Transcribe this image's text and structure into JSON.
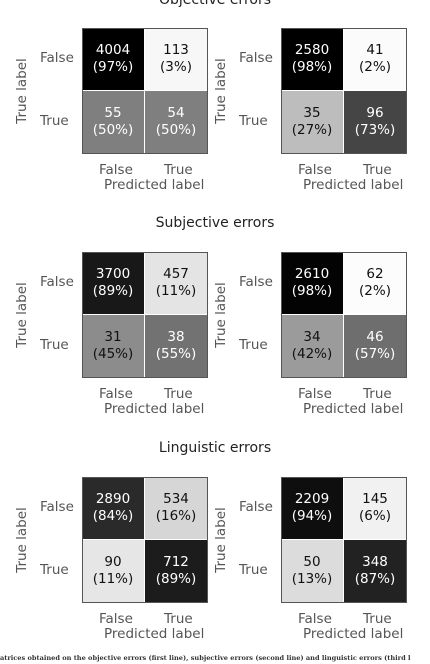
{
  "chart_data": [
    {
      "type": "heatmap",
      "section": "Objective errors",
      "title": "Objective errors",
      "xlabel": "Predicted label",
      "ylabel": "True label",
      "x_ticks": [
        "False",
        "True"
      ],
      "y_ticks": [
        "False",
        "True"
      ],
      "counts": [
        [
          4004,
          113
        ],
        [
          55,
          54
        ]
      ],
      "percent_labels": [
        [
          "(97%)",
          "(3%)"
        ],
        [
          "(50%)",
          "(50%)"
        ]
      ],
      "colors": [
        [
          "#000000",
          "#f7f7f7"
        ],
        [
          "#7f7f7f",
          "#7f7f7f"
        ]
      ]
    },
    {
      "type": "heatmap",
      "section": "Objective errors",
      "xlabel": "Predicted label",
      "ylabel": "True label",
      "x_ticks": [
        "False",
        "True"
      ],
      "y_ticks": [
        "False",
        "True"
      ],
      "counts": [
        [
          2580,
          41
        ],
        [
          35,
          96
        ]
      ],
      "percent_labels": [
        [
          "(98%)",
          "(2%)"
        ],
        [
          "(27%)",
          "(73%)"
        ]
      ],
      "colors": [
        [
          "#000000",
          "#fbfbfb"
        ],
        [
          "#bdbdbd",
          "#454545"
        ]
      ]
    },
    {
      "type": "heatmap",
      "section": "Subjective errors",
      "title": "Subjective errors",
      "xlabel": "Predicted label",
      "ylabel": "True label",
      "x_ticks": [
        "False",
        "True"
      ],
      "y_ticks": [
        "False",
        "True"
      ],
      "counts": [
        [
          3700,
          457
        ],
        [
          31,
          38
        ]
      ],
      "percent_labels": [
        [
          "(89%)",
          "(11%)"
        ],
        [
          "(45%)",
          "(55%)"
        ]
      ],
      "colors": [
        [
          "#181818",
          "#e4e4e4"
        ],
        [
          "#8c8c8c",
          "#727272"
        ]
      ]
    },
    {
      "type": "heatmap",
      "section": "Subjective errors",
      "xlabel": "Predicted label",
      "ylabel": "True label",
      "x_ticks": [
        "False",
        "True"
      ],
      "y_ticks": [
        "False",
        "True"
      ],
      "counts": [
        [
          2610,
          62
        ],
        [
          34,
          46
        ]
      ],
      "percent_labels": [
        [
          "(98%)",
          "(2%)"
        ],
        [
          "(42%)",
          "(57%)"
        ]
      ],
      "colors": [
        [
          "#030303",
          "#fcfcfc"
        ],
        [
          "#9b9b9b",
          "#6e6e6e"
        ]
      ]
    },
    {
      "type": "heatmap",
      "section": "Linguistic errors",
      "title": "Linguistic errors",
      "xlabel": "Predicted label",
      "ylabel": "True label",
      "x_ticks": [
        "False",
        "True"
      ],
      "y_ticks": [
        "False",
        "True"
      ],
      "counts": [
        [
          2890,
          534
        ],
        [
          90,
          712
        ]
      ],
      "percent_labels": [
        [
          "(84%)",
          "(16%)"
        ],
        [
          "(11%)",
          "(89%)"
        ]
      ],
      "colors": [
        [
          "#2a2a2a",
          "#d6d6d6"
        ],
        [
          "#e6e6e6",
          "#1c1c1c"
        ]
      ]
    },
    {
      "type": "heatmap",
      "section": "Linguistic errors",
      "xlabel": "Predicted label",
      "ylabel": "True label",
      "x_ticks": [
        "False",
        "True"
      ],
      "y_ticks": [
        "False",
        "True"
      ],
      "counts": [
        [
          2209,
          145
        ],
        [
          50,
          348
        ]
      ],
      "percent_labels": [
        [
          "(94%)",
          "(6%)"
        ],
        [
          "(13%)",
          "(87%)"
        ]
      ],
      "colors": [
        [
          "#0e0e0e",
          "#f1f1f1"
        ],
        [
          "#dcdcdc",
          "#222222"
        ]
      ]
    }
  ],
  "caption": "atrices obtained on the objective errors (first line), subjective errors (second line) and linguistic errors (third l"
}
